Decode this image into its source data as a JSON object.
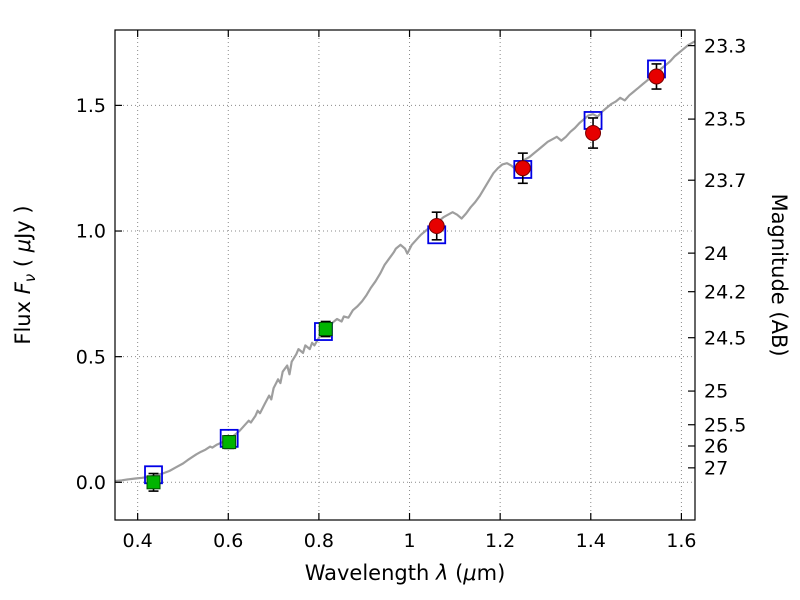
{
  "figure": {
    "background": "#ffffff"
  },
  "chart_data": {
    "type": "line+scatter",
    "title": "",
    "xlabel_parts": [
      {
        "t": "Wavelength  ",
        "it": false,
        "sub": false
      },
      {
        "t": "λ",
        "it": true,
        "sub": false
      },
      {
        "t": " (",
        "it": false,
        "sub": false
      },
      {
        "t": "μ",
        "it": true,
        "sub": false
      },
      {
        "t": "m)",
        "it": false,
        "sub": false
      }
    ],
    "ylabel_left_parts": [
      {
        "t": "Flux  ",
        "it": false,
        "sub": false
      },
      {
        "t": "F",
        "it": true,
        "sub": false
      },
      {
        "t": "ν",
        "it": true,
        "sub": true
      },
      {
        "t": "  ( ",
        "it": false,
        "sub": false
      },
      {
        "t": "μ",
        "it": true,
        "sub": false
      },
      {
        "t": "Jy )",
        "it": false,
        "sub": false
      }
    ],
    "ylabel_right": "Magnitude (AB)",
    "xlim": [
      0.35,
      1.63
    ],
    "ylim": [
      -0.15,
      1.8
    ],
    "x_ticks": {
      "values": [
        0.4,
        0.6,
        0.8,
        1.0,
        1.2,
        1.4,
        1.6
      ],
      "labels": [
        "0.4",
        "0.6",
        "0.8",
        "1",
        "1.2",
        "1.4",
        "1.6"
      ]
    },
    "y_ticks_left": {
      "values": [
        0.0,
        0.5,
        1.0,
        1.5
      ],
      "labels": [
        "0.0",
        "0.5",
        "1.0",
        "1.5"
      ]
    },
    "y_ticks_right": {
      "values": [
        23.3,
        23.5,
        23.7,
        24,
        24.2,
        24.5,
        25,
        25.5,
        26,
        27
      ],
      "labels": [
        "23.3",
        "23.5",
        "23.7",
        "24",
        "24.2",
        "24.5",
        "25",
        "25.5",
        "26",
        "27"
      ],
      "ab_zeropoint": 23.9
    },
    "grid": {
      "on": true,
      "style": "dotted",
      "color": "#8a8a8a"
    },
    "series": [
      {
        "name": "model-spectrum",
        "type": "line",
        "color": "#9e9e9e",
        "line_width": 2.2,
        "points": [
          [
            0.35,
            0.005
          ],
          [
            0.365,
            0.008
          ],
          [
            0.38,
            0.012
          ],
          [
            0.395,
            0.015
          ],
          [
            0.41,
            0.018
          ],
          [
            0.425,
            0.022
          ],
          [
            0.44,
            0.028
          ],
          [
            0.455,
            0.035
          ],
          [
            0.47,
            0.045
          ],
          [
            0.485,
            0.06
          ],
          [
            0.5,
            0.075
          ],
          [
            0.51,
            0.088
          ],
          [
            0.52,
            0.1
          ],
          [
            0.53,
            0.112
          ],
          [
            0.54,
            0.122
          ],
          [
            0.55,
            0.13
          ],
          [
            0.56,
            0.142
          ],
          [
            0.565,
            0.138
          ],
          [
            0.575,
            0.15
          ],
          [
            0.585,
            0.158
          ],
          [
            0.595,
            0.165
          ],
          [
            0.605,
            0.175
          ],
          [
            0.615,
            0.19
          ],
          [
            0.625,
            0.205
          ],
          [
            0.635,
            0.225
          ],
          [
            0.645,
            0.245
          ],
          [
            0.65,
            0.238
          ],
          [
            0.66,
            0.265
          ],
          [
            0.665,
            0.285
          ],
          [
            0.67,
            0.275
          ],
          [
            0.68,
            0.31
          ],
          [
            0.69,
            0.345
          ],
          [
            0.695,
            0.33
          ],
          [
            0.7,
            0.375
          ],
          [
            0.71,
            0.41
          ],
          [
            0.715,
            0.395
          ],
          [
            0.72,
            0.44
          ],
          [
            0.73,
            0.465
          ],
          [
            0.735,
            0.43
          ],
          [
            0.74,
            0.48
          ],
          [
            0.75,
            0.51
          ],
          [
            0.755,
            0.53
          ],
          [
            0.765,
            0.515
          ],
          [
            0.77,
            0.545
          ],
          [
            0.78,
            0.53
          ],
          [
            0.785,
            0.555
          ],
          [
            0.79,
            0.545
          ],
          [
            0.8,
            0.575
          ],
          [
            0.81,
            0.6
          ],
          [
            0.815,
            0.59
          ],
          [
            0.825,
            0.615
          ],
          [
            0.83,
            0.635
          ],
          [
            0.84,
            0.65
          ],
          [
            0.85,
            0.64
          ],
          [
            0.855,
            0.66
          ],
          [
            0.865,
            0.655
          ],
          [
            0.875,
            0.685
          ],
          [
            0.885,
            0.7
          ],
          [
            0.895,
            0.72
          ],
          [
            0.905,
            0.745
          ],
          [
            0.915,
            0.775
          ],
          [
            0.925,
            0.8
          ],
          [
            0.935,
            0.83
          ],
          [
            0.945,
            0.865
          ],
          [
            0.955,
            0.89
          ],
          [
            0.965,
            0.915
          ],
          [
            0.97,
            0.93
          ],
          [
            0.98,
            0.945
          ],
          [
            0.99,
            0.93
          ],
          [
            0.995,
            0.91
          ],
          [
            1.005,
            0.945
          ],
          [
            1.015,
            0.965
          ],
          [
            1.025,
            0.985
          ],
          [
            1.035,
            1.0
          ],
          [
            1.045,
            1.015
          ],
          [
            1.055,
            1.03
          ],
          [
            1.065,
            1.04
          ],
          [
            1.075,
            1.055
          ],
          [
            1.085,
            1.065
          ],
          [
            1.095,
            1.075
          ],
          [
            1.105,
            1.065
          ],
          [
            1.115,
            1.05
          ],
          [
            1.125,
            1.07
          ],
          [
            1.135,
            1.095
          ],
          [
            1.145,
            1.115
          ],
          [
            1.155,
            1.14
          ],
          [
            1.165,
            1.17
          ],
          [
            1.175,
            1.2
          ],
          [
            1.185,
            1.23
          ],
          [
            1.195,
            1.25
          ],
          [
            1.205,
            1.265
          ],
          [
            1.215,
            1.27
          ],
          [
            1.225,
            1.26
          ],
          [
            1.235,
            1.245
          ],
          [
            1.245,
            1.265
          ],
          [
            1.255,
            1.285
          ],
          [
            1.265,
            1.295
          ],
          [
            1.275,
            1.31
          ],
          [
            1.285,
            1.325
          ],
          [
            1.295,
            1.34
          ],
          [
            1.305,
            1.355
          ],
          [
            1.315,
            1.365
          ],
          [
            1.325,
            1.375
          ],
          [
            1.335,
            1.36
          ],
          [
            1.345,
            1.375
          ],
          [
            1.355,
            1.395
          ],
          [
            1.365,
            1.41
          ],
          [
            1.375,
            1.43
          ],
          [
            1.385,
            1.445
          ],
          [
            1.395,
            1.46
          ],
          [
            1.405,
            1.465
          ],
          [
            1.415,
            1.455
          ],
          [
            1.425,
            1.475
          ],
          [
            1.435,
            1.49
          ],
          [
            1.445,
            1.505
          ],
          [
            1.455,
            1.515
          ],
          [
            1.465,
            1.53
          ],
          [
            1.475,
            1.52
          ],
          [
            1.485,
            1.54
          ],
          [
            1.495,
            1.555
          ],
          [
            1.505,
            1.57
          ],
          [
            1.515,
            1.585
          ],
          [
            1.525,
            1.6
          ],
          [
            1.535,
            1.615
          ],
          [
            1.545,
            1.63
          ],
          [
            1.555,
            1.645
          ],
          [
            1.565,
            1.66
          ],
          [
            1.575,
            1.675
          ],
          [
            1.585,
            1.695
          ],
          [
            1.595,
            1.71
          ],
          [
            1.605,
            1.725
          ],
          [
            1.615,
            1.74
          ],
          [
            1.625,
            1.75
          ],
          [
            1.63,
            1.755
          ]
        ]
      },
      {
        "name": "model-photometry",
        "type": "scatter",
        "marker": "open-square",
        "color": "#0000e6",
        "marker_size": 17,
        "line_width": 1.8,
        "points": [
          [
            0.435,
            0.03
          ],
          [
            0.602,
            0.175
          ],
          [
            0.81,
            0.6
          ],
          [
            1.06,
            0.985
          ],
          [
            1.25,
            1.245
          ],
          [
            1.405,
            1.44
          ],
          [
            1.545,
            1.645
          ]
        ]
      },
      {
        "name": "observed-photometry-optical",
        "type": "scatter",
        "marker": "filled-square",
        "fill": "#00b400",
        "edge": "#004d00",
        "marker_size": 13,
        "points": [
          [
            0.435,
            0.0
          ],
          [
            0.602,
            0.16
          ],
          [
            0.815,
            0.61
          ]
        ],
        "yerr": [
          0.035,
          0.025,
          0.03
        ]
      },
      {
        "name": "observed-photometry-infrared",
        "type": "scatter",
        "marker": "filled-circle",
        "fill": "#e60000",
        "edge": "#7a0000",
        "marker_size": 15,
        "points": [
          [
            1.06,
            1.02
          ],
          [
            1.25,
            1.25
          ],
          [
            1.405,
            1.39
          ],
          [
            1.545,
            1.615
          ]
        ],
        "yerr": [
          0.055,
          0.06,
          0.06,
          0.05
        ]
      }
    ]
  }
}
